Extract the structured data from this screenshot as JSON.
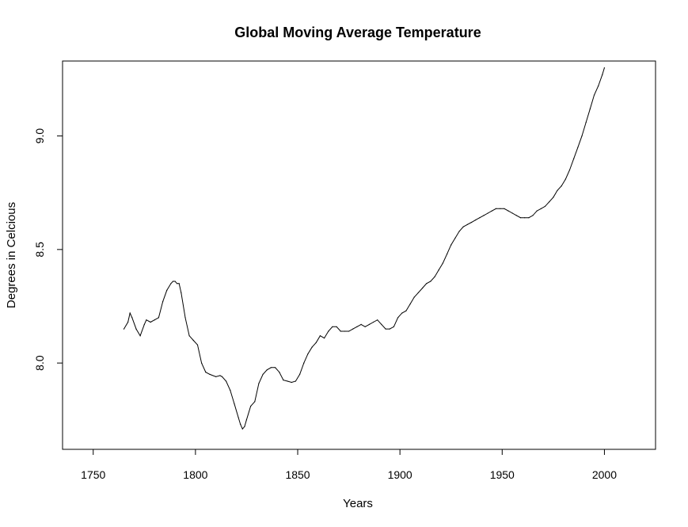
{
  "chart_data": {
    "type": "line",
    "title": "Global Moving Average Temperature",
    "xlabel": "Years",
    "ylabel": "Degrees in Celcious",
    "xlim": [
      1735,
      2025
    ],
    "ylim": [
      7.62,
      9.33
    ],
    "xticks": [
      1750,
      1800,
      1850,
      1900,
      1950,
      2000
    ],
    "yticks": [
      8.0,
      8.5,
      9.0
    ],
    "ytick_labels": [
      "8.0",
      "8.5",
      "9.0"
    ],
    "grid": false,
    "series": [
      {
        "color": "#000000",
        "x": [
          1765,
          1767,
          1768,
          1769,
          1771,
          1773,
          1775,
          1776,
          1778,
          1780,
          1782,
          1784,
          1786,
          1788,
          1789,
          1790,
          1791,
          1792,
          1793,
          1795,
          1797,
          1799,
          1801,
          1803,
          1805,
          1807,
          1810,
          1812,
          1813,
          1815,
          1817,
          1819,
          1821,
          1822,
          1823,
          1824,
          1825,
          1827,
          1829,
          1831,
          1833,
          1835,
          1837,
          1839,
          1841,
          1843,
          1845,
          1847,
          1849,
          1851,
          1853,
          1855,
          1857,
          1859,
          1861,
          1863,
          1865,
          1867,
          1869,
          1871,
          1873,
          1875,
          1877,
          1879,
          1881,
          1883,
          1885,
          1887,
          1889,
          1891,
          1893,
          1895,
          1897,
          1899,
          1901,
          1903,
          1905,
          1907,
          1909,
          1911,
          1913,
          1915,
          1917,
          1919,
          1921,
          1923,
          1925,
          1927,
          1929,
          1931,
          1933,
          1935,
          1937,
          1939,
          1941,
          1943,
          1945,
          1947,
          1949,
          1951,
          1953,
          1955,
          1957,
          1959,
          1961,
          1963,
          1965,
          1967,
          1969,
          1971,
          1973,
          1975,
          1977,
          1979,
          1981,
          1983,
          1985,
          1987,
          1989,
          1991,
          1993,
          1995,
          1997,
          1999,
          2000
        ],
        "y": [
          8.15,
          8.18,
          8.22,
          8.2,
          8.15,
          8.12,
          8.17,
          8.19,
          8.18,
          8.19,
          8.2,
          8.27,
          8.32,
          8.35,
          8.36,
          8.36,
          8.35,
          8.35,
          8.31,
          8.2,
          8.12,
          8.1,
          8.08,
          8.0,
          7.96,
          7.95,
          7.94,
          7.945,
          7.94,
          7.92,
          7.88,
          7.82,
          7.76,
          7.73,
          7.71,
          7.72,
          7.75,
          7.81,
          7.83,
          7.91,
          7.95,
          7.97,
          7.98,
          7.98,
          7.96,
          7.925,
          7.92,
          7.915,
          7.92,
          7.95,
          8.0,
          8.04,
          8.07,
          8.09,
          8.12,
          8.11,
          8.14,
          8.16,
          8.16,
          8.14,
          8.14,
          8.14,
          8.15,
          8.16,
          8.17,
          8.16,
          8.17,
          8.18,
          8.19,
          8.17,
          8.15,
          8.15,
          8.16,
          8.2,
          8.22,
          8.23,
          8.26,
          8.29,
          8.31,
          8.33,
          8.35,
          8.36,
          8.38,
          8.41,
          8.44,
          8.48,
          8.52,
          8.55,
          8.58,
          8.6,
          8.61,
          8.62,
          8.63,
          8.64,
          8.65,
          8.66,
          8.67,
          8.68,
          8.68,
          8.68,
          8.67,
          8.66,
          8.65,
          8.64,
          8.64,
          8.64,
          8.65,
          8.67,
          8.68,
          8.69,
          8.71,
          8.73,
          8.76,
          8.78,
          8.81,
          8.85,
          8.9,
          8.95,
          9.0,
          9.06,
          9.12,
          9.18,
          9.22,
          9.27,
          9.3
        ]
      }
    ]
  }
}
